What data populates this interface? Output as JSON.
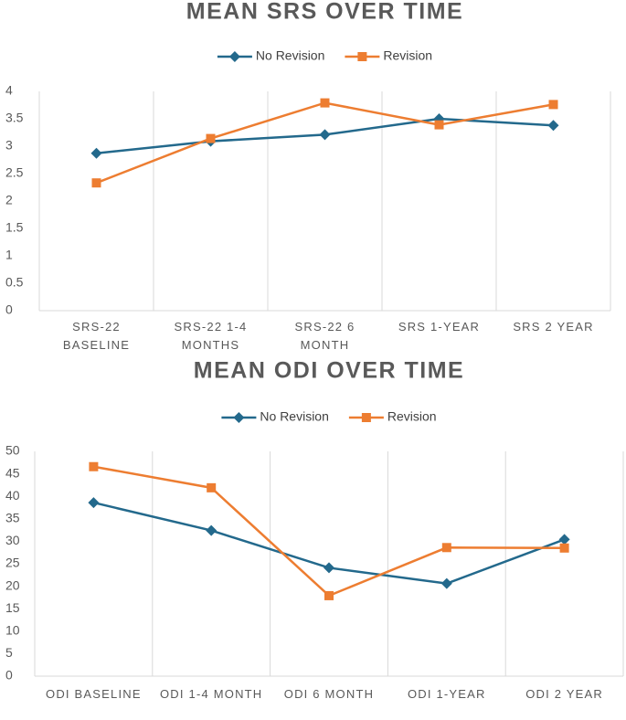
{
  "chart_data": [
    {
      "type": "line",
      "title": "MEAN SRS OVER TIME",
      "categories": [
        "SRS-22 BASELINE",
        "SRS-22 1-4 MONTHS",
        "SRS-22 6 MONTH",
        "SRS 1-YEAR",
        "SRS 2 YEAR"
      ],
      "series": [
        {
          "name": "No Revision",
          "color": "#23698c",
          "marker": "diamond",
          "values": [
            2.87,
            3.09,
            3.21,
            3.5,
            3.38
          ]
        },
        {
          "name": "Revision",
          "color": "#ed7d31",
          "marker": "square",
          "values": [
            2.33,
            3.14,
            3.79,
            3.39,
            3.76
          ]
        }
      ],
      "ylim": [
        0,
        4
      ],
      "yticks": [
        0,
        0.5,
        1,
        1.5,
        2,
        2.5,
        3,
        3.5,
        4
      ],
      "grid": true,
      "legend": "top"
    },
    {
      "type": "line",
      "title": "MEAN ODI OVER TIME",
      "categories": [
        "ODI BASELINE",
        "ODI 1-4 MONTH",
        "ODI 6 MONTH",
        "ODI 1-YEAR",
        "ODI 2 YEAR"
      ],
      "series": [
        {
          "name": "No Revision",
          "color": "#23698c",
          "marker": "diamond",
          "values": [
            38.6,
            32.4,
            24.1,
            20.6,
            30.4
          ]
        },
        {
          "name": "Revision",
          "color": "#ed7d31",
          "marker": "square",
          "values": [
            46.6,
            41.9,
            17.9,
            28.6,
            28.5
          ]
        }
      ],
      "ylim": [
        0,
        50
      ],
      "yticks": [
        0,
        5,
        10,
        15,
        20,
        25,
        30,
        35,
        40,
        45,
        50
      ],
      "grid": true,
      "legend": "top"
    }
  ]
}
